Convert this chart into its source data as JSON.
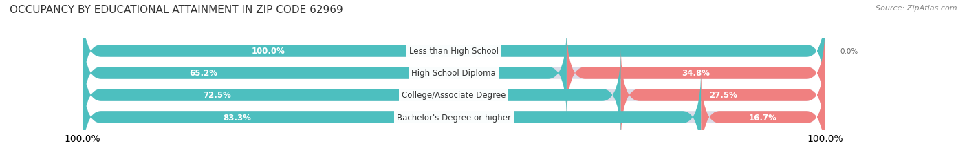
{
  "title": "OCCUPANCY BY EDUCATIONAL ATTAINMENT IN ZIP CODE 62969",
  "source": "Source: ZipAtlas.com",
  "categories": [
    "Less than High School",
    "High School Diploma",
    "College/Associate Degree",
    "Bachelor's Degree or higher"
  ],
  "owner_values": [
    100.0,
    65.2,
    72.5,
    83.3
  ],
  "renter_values": [
    0.0,
    34.8,
    27.5,
    16.7
  ],
  "owner_color": "#4DBFBF",
  "renter_color": "#F08080",
  "owner_color_light": "#A8DCDC",
  "renter_color_light": "#F5B8C8",
  "bar_bg_color": "#E8E8E8",
  "background_color": "#FFFFFF",
  "title_fontsize": 11,
  "source_fontsize": 8,
  "label_fontsize": 8.5,
  "legend_fontsize": 9,
  "axis_label_fontsize": 8,
  "bar_height": 0.55,
  "xlim": [
    0,
    100
  ]
}
